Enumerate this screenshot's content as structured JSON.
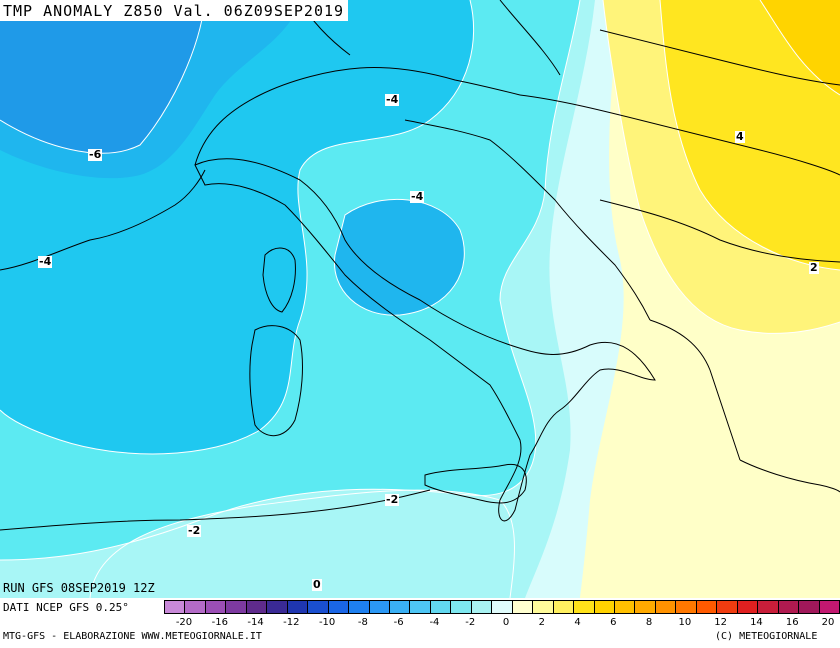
{
  "title": "TMP ANOMALY Z850 Val. 06Z09SEP2019",
  "run_label": "RUN GFS 08SEP2019 12Z",
  "data_label": "DATI NCEP GFS 0.25°",
  "credit_left": "MTG-GFS - ELABORAZIONE WWW.METEOGIORNALE.IT",
  "credit_right": "(C) METEOGIORNALE",
  "contour_labels": [
    "-6",
    "-4",
    "-4",
    "-4",
    "-2",
    "-2",
    "0",
    "4",
    "2"
  ],
  "scale": {
    "ticks": [
      "-20",
      "-16",
      "-14",
      "-12",
      "-10",
      "-8",
      "-6",
      "-4",
      "-2",
      "0",
      "2",
      "4",
      "6",
      "8",
      "10",
      "12",
      "14",
      "16",
      "20"
    ],
    "colors": [
      "#c889d8",
      "#b36bc7",
      "#9b4fb5",
      "#7d3aa0",
      "#5f2b8c",
      "#3a2a95",
      "#1f36b0",
      "#1a4fd0",
      "#1a66e6",
      "#1e80f0",
      "#2b98f5",
      "#3ab0f5",
      "#4ec6f5",
      "#62d8f0",
      "#7ee8f0",
      "#a8f2f2",
      "#e0fcfc",
      "#ffffd0",
      "#fffb9a",
      "#fff060",
      "#ffe21a",
      "#ffd200",
      "#ffc000",
      "#ffaa00",
      "#ff9200",
      "#ff7800",
      "#ff5a00",
      "#f03c10",
      "#e02020",
      "#c81e3a",
      "#b01a50",
      "#a0185a",
      "#c21870"
    ]
  }
}
